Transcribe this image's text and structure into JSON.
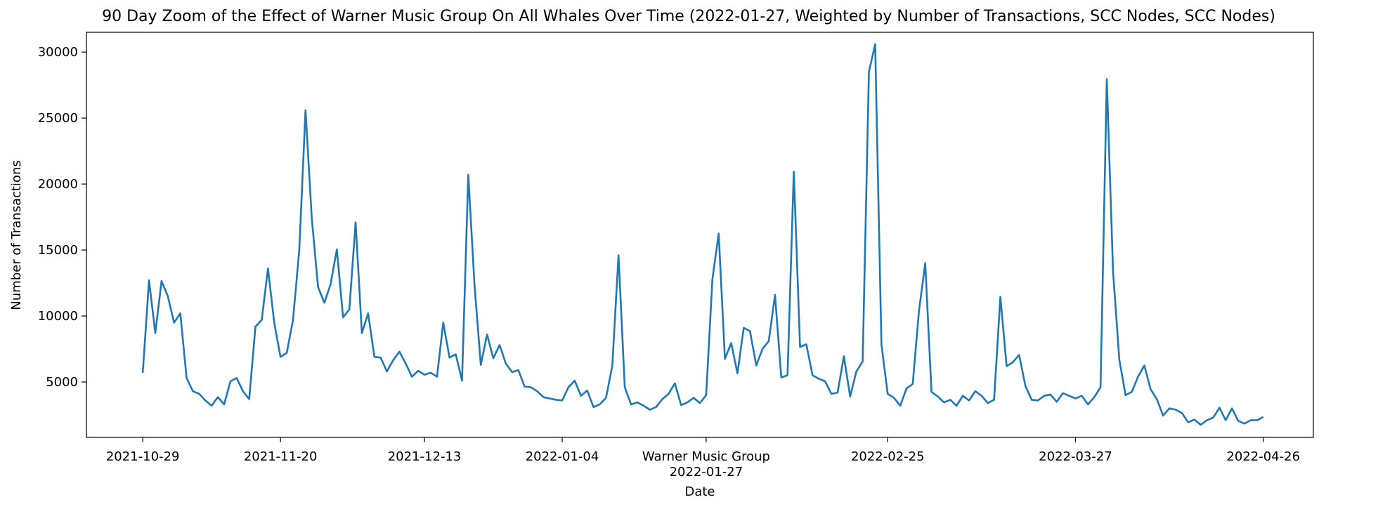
{
  "chart_data": {
    "type": "line",
    "title": "90 Day Zoom of the Effect of Warner Music Group On All Whales Over Time (2022-01-27, Weighted by Number of Transactions, SCC Nodes, SCC Nodes)",
    "xlabel": "Date",
    "ylabel": "Number of Transactions",
    "xlim": [
      "2021-10-20",
      "2022-05-04"
    ],
    "ylim": [
      800,
      31500
    ],
    "yticks": [
      5000,
      10000,
      15000,
      20000,
      25000,
      30000
    ],
    "xticks": [
      {
        "date": "2021-10-29",
        "label": "2021-10-29"
      },
      {
        "date": "2021-11-20",
        "label": "2021-11-20"
      },
      {
        "date": "2021-12-13",
        "label": "2021-12-13"
      },
      {
        "date": "2022-01-04",
        "label": "2022-01-04"
      },
      {
        "date": "2022-01-27",
        "label": "Warner Music Group\n2022-01-27"
      },
      {
        "date": "2022-02-25",
        "label": "2022-02-25"
      },
      {
        "date": "2022-03-27",
        "label": "2022-03-27"
      },
      {
        "date": "2022-04-26",
        "label": "2022-04-26"
      }
    ],
    "grid": false,
    "legend": "none",
    "color": "#1f77b4",
    "series": [
      {
        "x_start": "2021-10-29",
        "x_step_days": 1,
        "values": [
          5700,
          12700,
          8700,
          12650,
          11500,
          9500,
          10200,
          5300,
          4300,
          4100,
          3600,
          3200,
          3850,
          3300,
          5050,
          5300,
          4300,
          3700,
          9200,
          9700,
          13600,
          9500,
          6900,
          7200,
          9700,
          15000,
          25600,
          17400,
          12200,
          11000,
          12400,
          15050,
          9900,
          10500,
          17100,
          8700,
          10200,
          6900,
          6850,
          5800,
          6650,
          7300,
          6400,
          5400,
          5850,
          5550,
          5700,
          5400,
          9500,
          6850,
          7100,
          5100,
          20700,
          12300,
          6300,
          8600,
          6800,
          7800,
          6400,
          5750,
          5900,
          4650,
          4600,
          4300,
          3850,
          3750,
          3650,
          3600,
          4600,
          5100,
          3950,
          4350,
          3100,
          3300,
          3800,
          6200,
          14600,
          4600,
          3300,
          3450,
          3200,
          2900,
          3100,
          3700,
          4100,
          4900,
          3250,
          3450,
          3800,
          3400,
          4000,
          12800,
          16250,
          6750,
          7950,
          5650,
          9100,
          8850,
          6250,
          7500,
          8100,
          11600,
          5350,
          5500,
          20950,
          7650,
          7850,
          5500,
          5250,
          5050,
          4100,
          4200,
          6950,
          3900,
          5800,
          6550,
          28500,
          30600,
          7850,
          4100,
          3800,
          3200,
          4500,
          4850,
          10400,
          14000,
          4250,
          3900,
          3450,
          3650,
          3200,
          3950,
          3600,
          4300,
          3950,
          3400,
          3650,
          11450,
          6200,
          6500,
          7050,
          4700,
          3650,
          3600,
          3950,
          4050,
          3500,
          4150,
          3950,
          3750,
          3950,
          3300,
          3850,
          4600,
          27950,
          13400,
          6700,
          4000,
          4250,
          5400,
          6250,
          4450,
          3700,
          2450,
          3000,
          2900,
          2650,
          1950,
          2150,
          1750,
          2100,
          2300,
          3050,
          2100,
          3000,
          2050,
          1850,
          2100,
          2100,
          2350
        ]
      }
    ]
  }
}
